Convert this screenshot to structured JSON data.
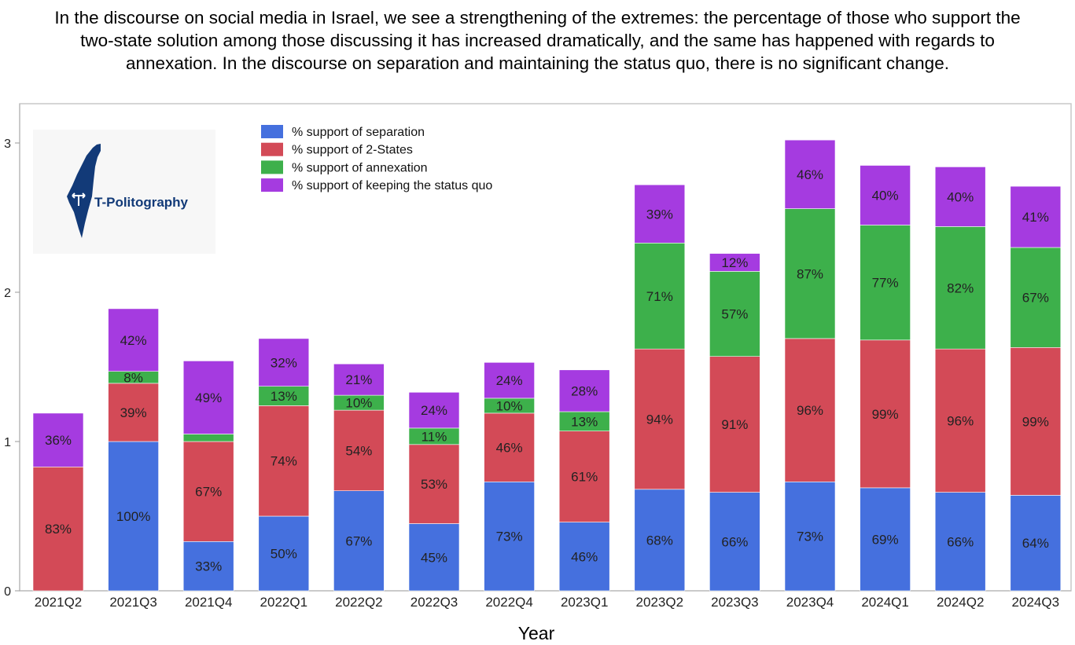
{
  "caption": {
    "line1": "In the discourse on social media in Israel, we see a strengthening of the extremes: the percentage of those who support the",
    "line2": "two-state solution among those discussing it has increased dramatically, and the same has happened with regards to",
    "line3": "annexation. In the discourse on separation and maintaining the status quo, there is no significant change."
  },
  "logo": {
    "text": "T-Politography",
    "icon": "israel-map-crossroads-icon",
    "color": "#123a78"
  },
  "colors": {
    "separation": "#4570de",
    "two_states": "#d34a57",
    "annexation": "#3db04b",
    "status_quo": "#a53be0"
  },
  "chart_data": {
    "type": "bar",
    "stacked": true,
    "xlabel": "Year",
    "ylabel": "",
    "ylim": [
      0,
      3.2
    ],
    "yticks": [
      0,
      1,
      2,
      3
    ],
    "grid": false,
    "legend_position": "top-left",
    "categories": [
      "2021Q2",
      "2021Q3",
      "2021Q4",
      "2022Q1",
      "2022Q2",
      "2022Q3",
      "2022Q4",
      "2023Q1",
      "2023Q2",
      "2023Q3",
      "2023Q4",
      "2024Q1",
      "2024Q2",
      "2024Q3"
    ],
    "series": [
      {
        "name": "% support of separation",
        "key": "separation",
        "values": [
          0,
          1.0,
          0.33,
          0.5,
          0.67,
          0.45,
          0.73,
          0.46,
          0.68,
          0.66,
          0.73,
          0.69,
          0.66,
          0.64
        ],
        "labels": [
          "",
          "100%",
          "33%",
          "50%",
          "67%",
          "45%",
          "73%",
          "46%",
          "68%",
          "66%",
          "73%",
          "69%",
          "66%",
          "64%"
        ]
      },
      {
        "name": "% support of 2-States",
        "key": "two_states",
        "values": [
          0.83,
          0.39,
          0.67,
          0.74,
          0.54,
          0.53,
          0.46,
          0.61,
          0.94,
          0.91,
          0.96,
          0.99,
          0.96,
          0.99
        ],
        "labels": [
          "83%",
          "39%",
          "67%",
          "74%",
          "54%",
          "53%",
          "46%",
          "61%",
          "94%",
          "91%",
          "96%",
          "99%",
          "96%",
          "99%"
        ]
      },
      {
        "name": "% support of annexation",
        "key": "annexation",
        "values": [
          0,
          0.08,
          0.05,
          0.13,
          0.1,
          0.11,
          0.1,
          0.13,
          0.71,
          0.57,
          0.87,
          0.77,
          0.82,
          0.67
        ],
        "labels": [
          "",
          "8%",
          "",
          "13%",
          "10%",
          "11%",
          "10%",
          "13%",
          "71%",
          "57%",
          "87%",
          "77%",
          "82%",
          "67%"
        ]
      },
      {
        "name": "% support of keeping the status quo",
        "key": "status_quo",
        "values": [
          0.36,
          0.42,
          0.49,
          0.32,
          0.21,
          0.24,
          0.24,
          0.28,
          0.39,
          0.12,
          0.46,
          0.4,
          0.4,
          0.41
        ],
        "labels": [
          "36%",
          "42%",
          "49%",
          "32%",
          "21%",
          "24%",
          "24%",
          "28%",
          "39%",
          "12%",
          "46%",
          "40%",
          "40%",
          "41%"
        ]
      }
    ]
  }
}
